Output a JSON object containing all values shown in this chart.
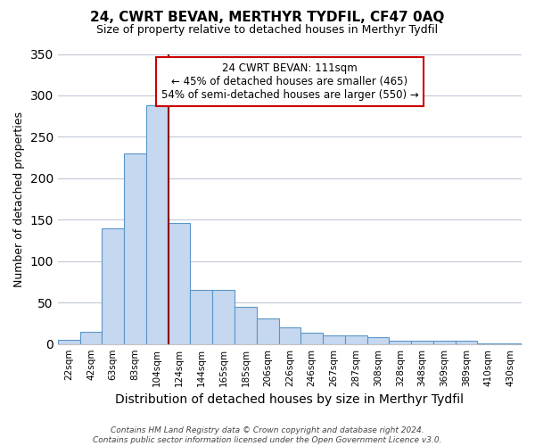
{
  "title": "24, CWRT BEVAN, MERTHYR TYDFIL, CF47 0AQ",
  "subtitle": "Size of property relative to detached houses in Merthyr Tydfil",
  "xlabel": "Distribution of detached houses by size in Merthyr Tydfil",
  "ylabel": "Number of detached properties",
  "bar_labels": [
    "22sqm",
    "42sqm",
    "63sqm",
    "83sqm",
    "104sqm",
    "124sqm",
    "144sqm",
    "165sqm",
    "185sqm",
    "206sqm",
    "226sqm",
    "246sqm",
    "267sqm",
    "287sqm",
    "308sqm",
    "328sqm",
    "348sqm",
    "369sqm",
    "389sqm",
    "410sqm",
    "430sqm"
  ],
  "bar_values": [
    5,
    15,
    140,
    230,
    288,
    146,
    65,
    65,
    45,
    31,
    20,
    14,
    10,
    10,
    8,
    4,
    4,
    4,
    4,
    1,
    1
  ],
  "bar_color": "#c5d8f0",
  "bar_edge_color": "#5a96c8",
  "vline_color": "#8b0000",
  "ylim": [
    0,
    350
  ],
  "yticks": [
    0,
    50,
    100,
    150,
    200,
    250,
    300,
    350
  ],
  "annotation_title": "24 CWRT BEVAN: 111sqm",
  "annotation_line1": "← 45% of detached houses are smaller (465)",
  "annotation_line2": "54% of semi-detached houses are larger (550) →",
  "annotation_box_color": "#ffffff",
  "annotation_box_edgecolor": "#cc0000",
  "footer_line1": "Contains HM Land Registry data © Crown copyright and database right 2024.",
  "footer_line2": "Contains public sector information licensed under the Open Government Licence v3.0.",
  "background_color": "#ffffff",
  "grid_color": "#c0c8d8"
}
